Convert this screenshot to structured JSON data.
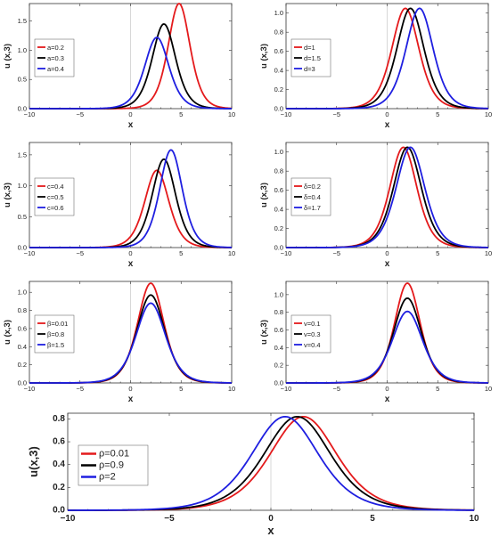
{
  "chart_data": [
    {
      "type": "line",
      "xlabel": "x",
      "ylabel": "u (x,3)",
      "xlim": [
        -10,
        10
      ],
      "ylim": [
        0,
        1.8
      ],
      "xticks": [
        -10,
        -5,
        0,
        5,
        10
      ],
      "yticks": [
        0.0,
        0.5,
        1.0,
        1.5
      ],
      "ytick_labels": [
        "0.0",
        "0.5",
        "1.0",
        "1.5"
      ],
      "legend_position": "center-left",
      "series": [
        {
          "name": "a=0.2",
          "color": "#e41a1c",
          "peak_x": 4.8,
          "peak_y": 1.8,
          "width": 1.45
        },
        {
          "name": "a=0.3",
          "color": "#000000",
          "peak_x": 3.3,
          "peak_y": 1.45,
          "width": 1.55
        },
        {
          "name": "a=0.4",
          "color": "#1f1fe0",
          "peak_x": 2.6,
          "peak_y": 1.22,
          "width": 1.6
        }
      ]
    },
    {
      "type": "line",
      "xlabel": "x",
      "ylabel": "u (x,3)",
      "xlim": [
        -10,
        10
      ],
      "ylim": [
        0,
        1.1
      ],
      "xticks": [
        -10,
        -5,
        0,
        5,
        10
      ],
      "yticks": [
        0.0,
        0.2,
        0.4,
        0.6,
        0.8,
        1.0
      ],
      "ytick_labels": [
        "0.0",
        "0.2",
        "0.4",
        "0.6",
        "0.8",
        "1.0"
      ],
      "legend_position": "center-left",
      "series": [
        {
          "name": "d=1",
          "color": "#e41a1c",
          "peak_x": 1.8,
          "peak_y": 1.05,
          "width": 1.8
        },
        {
          "name": "d=1.5",
          "color": "#000000",
          "peak_x": 2.3,
          "peak_y": 1.05,
          "width": 1.8
        },
        {
          "name": "d=3",
          "color": "#1f1fe0",
          "peak_x": 3.2,
          "peak_y": 1.05,
          "width": 1.8
        }
      ]
    },
    {
      "type": "line",
      "xlabel": "x",
      "ylabel": "u (x,3)",
      "xlim": [
        -10,
        10
      ],
      "ylim": [
        0,
        1.7
      ],
      "xticks": [
        -10,
        -5,
        0,
        5,
        10
      ],
      "yticks": [
        0.0,
        0.5,
        1.0,
        1.5
      ],
      "ytick_labels": [
        "0.0",
        "0.5",
        "1.0",
        "1.5"
      ],
      "legend_position": "center-left",
      "series": [
        {
          "name": "c=0.4",
          "color": "#e41a1c",
          "peak_x": 2.6,
          "peak_y": 1.25,
          "width": 1.6
        },
        {
          "name": "c=0.5",
          "color": "#000000",
          "peak_x": 3.3,
          "peak_y": 1.43,
          "width": 1.55
        },
        {
          "name": "c=0.6",
          "color": "#1f1fe0",
          "peak_x": 4.0,
          "peak_y": 1.58,
          "width": 1.5
        }
      ]
    },
    {
      "type": "line",
      "xlabel": "x",
      "ylabel": "u (x,3)",
      "xlim": [
        -10,
        10
      ],
      "ylim": [
        0,
        1.1
      ],
      "xticks": [
        -10,
        -5,
        0,
        5,
        10
      ],
      "yticks": [
        0.0,
        0.2,
        0.4,
        0.6,
        0.8,
        1.0
      ],
      "ytick_labels": [
        "0.0",
        "0.2",
        "0.4",
        "0.6",
        "0.8",
        "1.0"
      ],
      "legend_position": "center-left",
      "series": [
        {
          "name": "δ=0.2",
          "color": "#e41a1c",
          "peak_x": 1.6,
          "peak_y": 1.05,
          "width": 1.8
        },
        {
          "name": "δ=0.4",
          "color": "#000000",
          "peak_x": 2.0,
          "peak_y": 1.05,
          "width": 1.85
        },
        {
          "name": "δ=1.7",
          "color": "#1f1fe0",
          "peak_x": 2.3,
          "peak_y": 1.05,
          "width": 1.9
        }
      ]
    },
    {
      "type": "line",
      "xlabel": "x",
      "ylabel": "u (x,3)",
      "xlim": [
        -10,
        10
      ],
      "ylim": [
        0,
        1.12
      ],
      "xticks": [
        -10,
        -5,
        0,
        5,
        10
      ],
      "yticks": [
        0.0,
        0.2,
        0.4,
        0.6,
        0.8,
        1.0
      ],
      "ytick_labels": [
        "0.0",
        "0.2",
        "0.4",
        "0.6",
        "0.8",
        "1.0"
      ],
      "legend_position": "center-left",
      "series": [
        {
          "name": "β=0.01",
          "color": "#e41a1c",
          "peak_x": 2.0,
          "peak_y": 1.1,
          "width": 1.75
        },
        {
          "name": "β=0.8",
          "color": "#000000",
          "peak_x": 2.0,
          "peak_y": 0.97,
          "width": 1.85
        },
        {
          "name": "β=1.5",
          "color": "#1f1fe0",
          "peak_x": 2.0,
          "peak_y": 0.88,
          "width": 1.95
        }
      ]
    },
    {
      "type": "line",
      "xlabel": "x",
      "ylabel": "u (x,3)",
      "xlim": [
        -10,
        10
      ],
      "ylim": [
        0,
        1.15
      ],
      "xticks": [
        -10,
        -5,
        0,
        5,
        10
      ],
      "yticks": [
        0.0,
        0.2,
        0.4,
        0.6,
        0.8,
        1.0
      ],
      "ytick_labels": [
        "0.0",
        "0.2",
        "0.4",
        "0.6",
        "0.8",
        "1.0"
      ],
      "legend_position": "center-left",
      "series": [
        {
          "name": "v=0.1",
          "color": "#e41a1c",
          "peak_x": 2.0,
          "peak_y": 1.13,
          "width": 1.7
        },
        {
          "name": "v=0.3",
          "color": "#000000",
          "peak_x": 2.0,
          "peak_y": 0.96,
          "width": 1.85
        },
        {
          "name": "v=0.4",
          "color": "#1f1fe0",
          "peak_x": 2.0,
          "peak_y": 0.81,
          "width": 2.0
        }
      ]
    },
    {
      "type": "line",
      "xlabel": "x",
      "ylabel": "u(x,3)",
      "xlim": [
        -10,
        10
      ],
      "ylim": [
        0,
        0.85
      ],
      "xticks": [
        -10,
        -5,
        0,
        5,
        10
      ],
      "yticks": [
        0.0,
        0.2,
        0.4,
        0.6,
        0.8
      ],
      "ytick_labels": [
        "0.0",
        "0.2",
        "0.4",
        "0.6",
        "0.8"
      ],
      "legend_position": "center-left",
      "series": [
        {
          "name": "ρ=0.01",
          "color": "#e41a1c",
          "peak_x": 1.6,
          "peak_y": 0.82,
          "width": 2.2
        },
        {
          "name": "ρ=0.9",
          "color": "#000000",
          "peak_x": 1.3,
          "peak_y": 0.82,
          "width": 2.2
        },
        {
          "name": "ρ=2",
          "color": "#1f1fe0",
          "peak_x": 0.7,
          "peak_y": 0.82,
          "width": 2.2
        }
      ]
    }
  ]
}
